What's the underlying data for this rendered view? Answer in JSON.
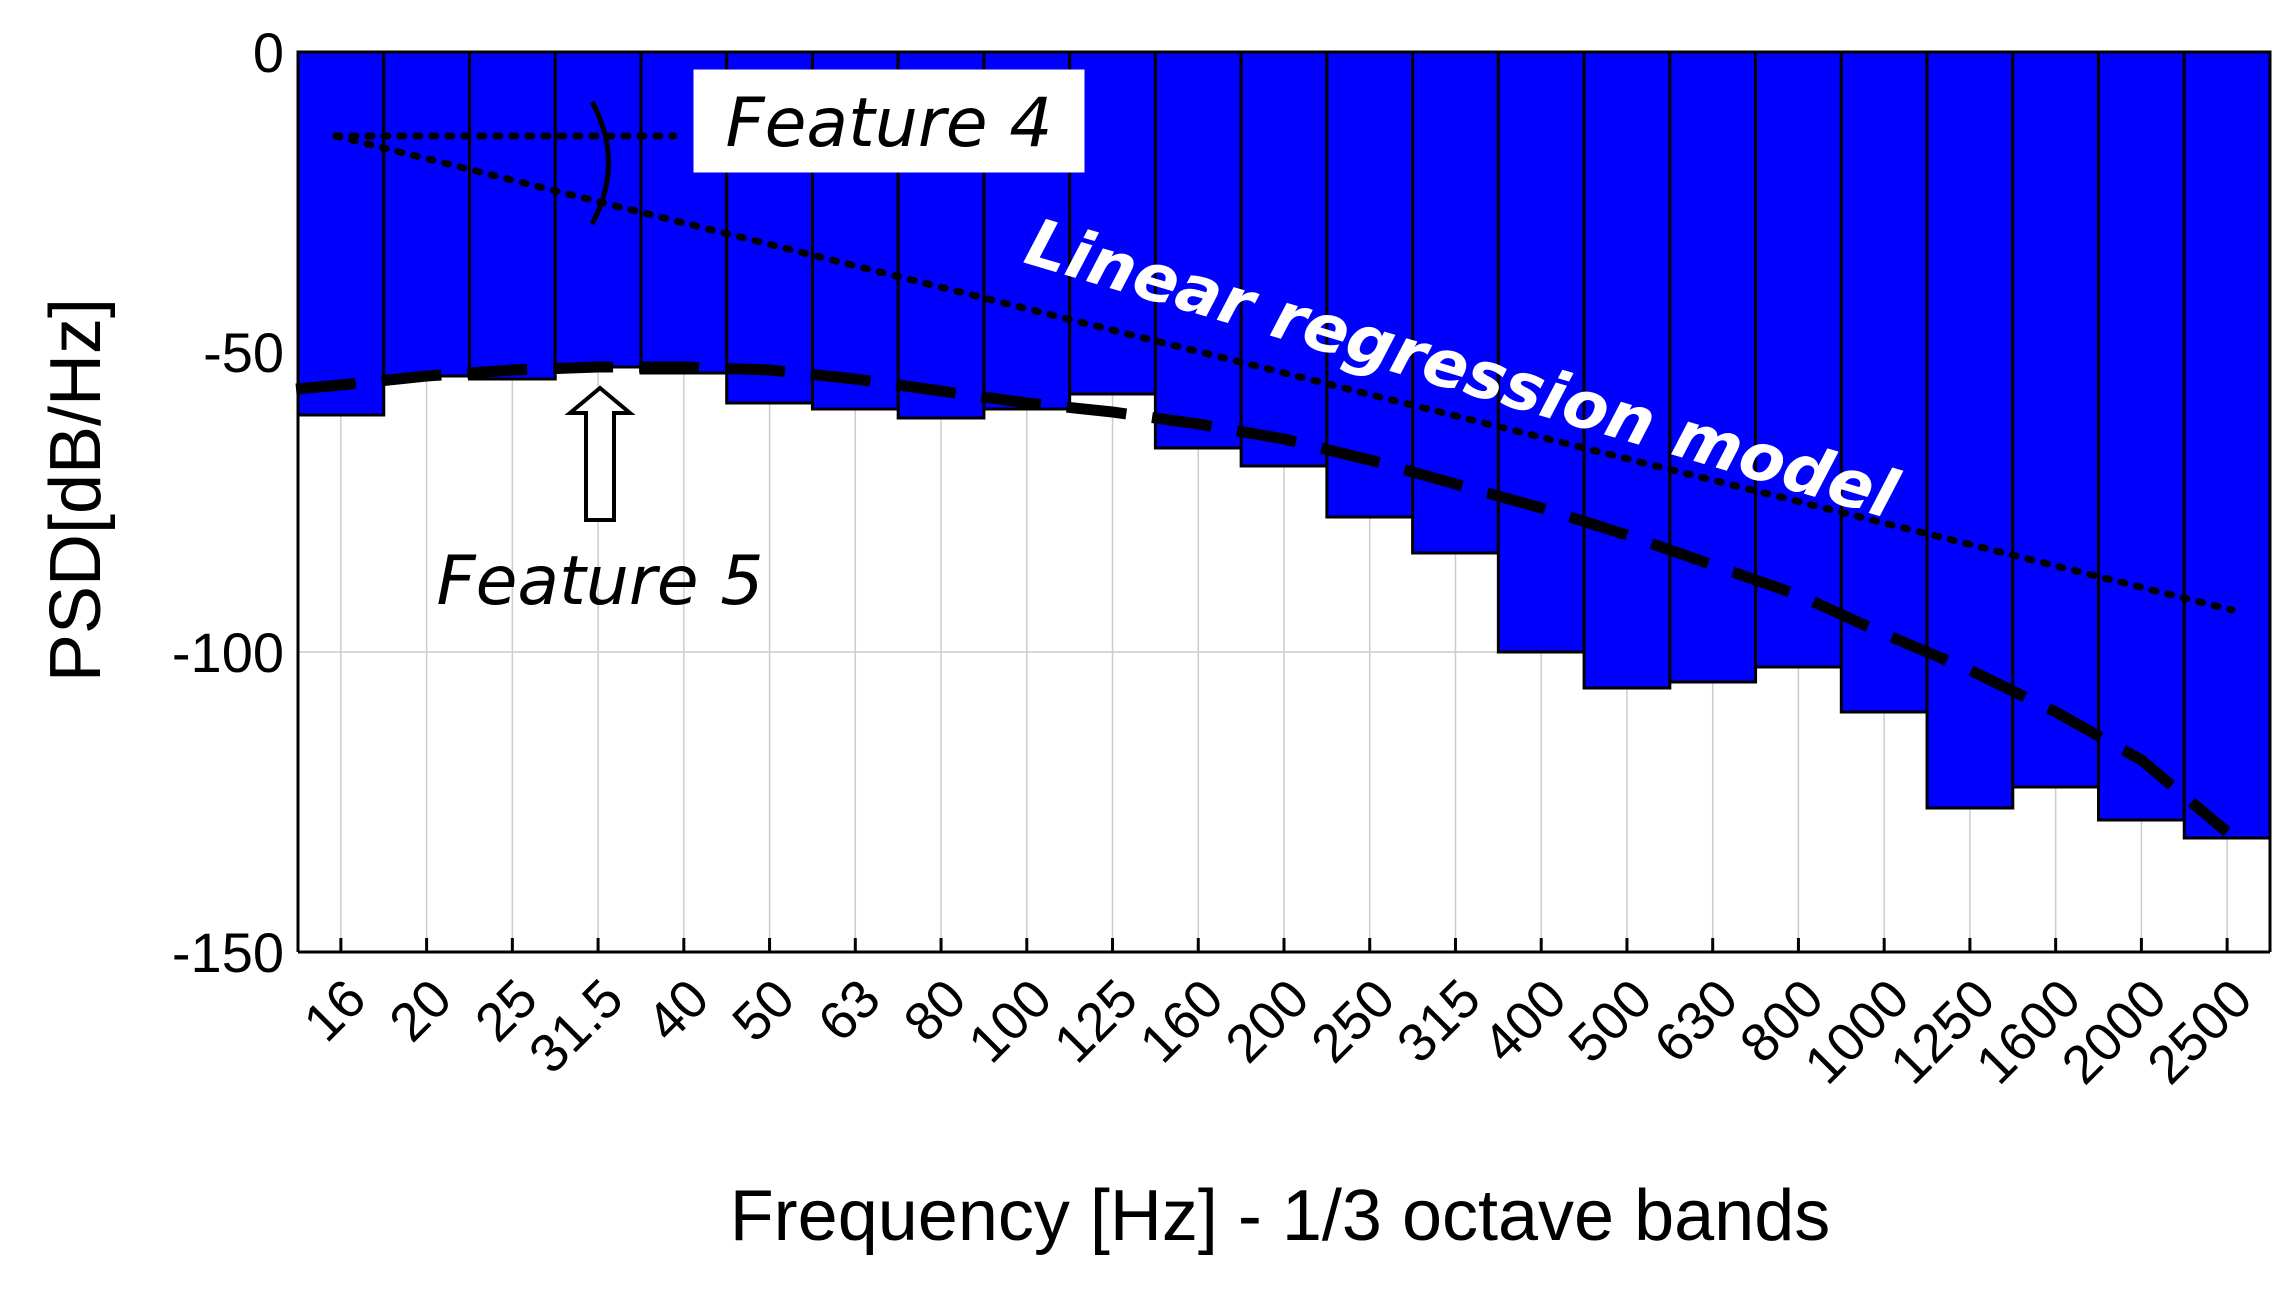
{
  "chart_data": {
    "type": "bar",
    "categories": [
      "16",
      "20",
      "25",
      "31.5",
      "40",
      "50",
      "63",
      "80",
      "100",
      "125",
      "160",
      "200",
      "250",
      "315",
      "400",
      "500",
      "630",
      "800",
      "1000",
      "1250",
      "1600",
      "2000",
      "2500"
    ],
    "values": [
      -60.5,
      -54,
      -54.5,
      -52.5,
      -53.5,
      -58.5,
      -59.5,
      -61,
      -59.5,
      -57,
      -66,
      -69,
      -77.5,
      -83.5,
      -100,
      -106,
      -105,
      -102.5,
      -110,
      -126,
      -122.5,
      -128,
      -131
    ],
    "xlabel": "Frequency [Hz] - 1/3 octave bands",
    "ylabel": "PSD[dB/Hz]",
    "ylim": [
      -150,
      0
    ],
    "yticks": [
      0,
      -50,
      -100,
      -150
    ],
    "bar_color": "#0000ff",
    "grid": true,
    "series": [
      {
        "name": "Linear regression model",
        "style": "dotted",
        "x": [
          "16",
          "2500"
        ],
        "values": [
          -14,
          -93
        ]
      },
      {
        "style": "dashed",
        "x": [
          "16",
          "20",
          "25",
          "31.5",
          "40",
          "50",
          "63",
          "80",
          "100",
          "125",
          "160",
          "200",
          "250",
          "315",
          "400",
          "500",
          "630",
          "800",
          "1000",
          "1250",
          "1600",
          "2000",
          "2500"
        ],
        "values": [
          -55.5,
          -54,
          -53,
          -52.5,
          -52.5,
          -53,
          -54.5,
          -56.5,
          -58.5,
          -60,
          -62,
          -64.5,
          -68,
          -72,
          -76,
          -80.5,
          -85.5,
          -90.5,
          -97,
          -103,
          -110,
          -118,
          -130
        ]
      }
    ],
    "annotations": [
      {
        "text": "Feature 4",
        "boxed": true
      },
      {
        "text": "Feature 5",
        "arrow": "up"
      },
      {
        "text": "Linear regression model",
        "color": "#ffffff"
      }
    ]
  }
}
